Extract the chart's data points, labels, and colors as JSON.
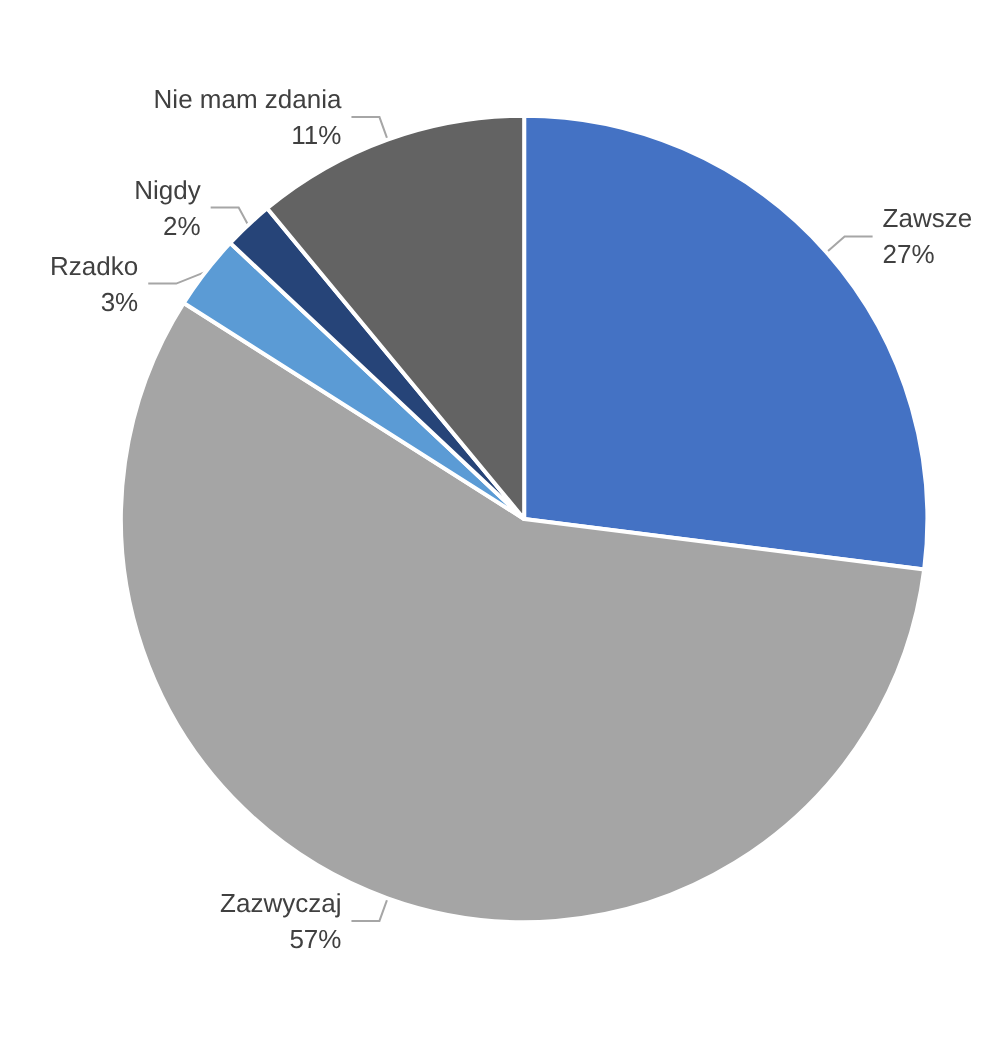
{
  "chart_data": {
    "type": "pie",
    "categories": [
      "Zawsze",
      "Zazwyczaj",
      "Rzadko",
      "Nigdy",
      "Nie mam zdania"
    ],
    "values": [
      27,
      57,
      3,
      2,
      11
    ],
    "value_labels": [
      "27%",
      "57%",
      "3%",
      "2%",
      "11%"
    ],
    "colors": [
      "#4472c4",
      "#a5a5a5",
      "#5b9bd5",
      "#264478",
      "#636363"
    ],
    "legend": false
  }
}
